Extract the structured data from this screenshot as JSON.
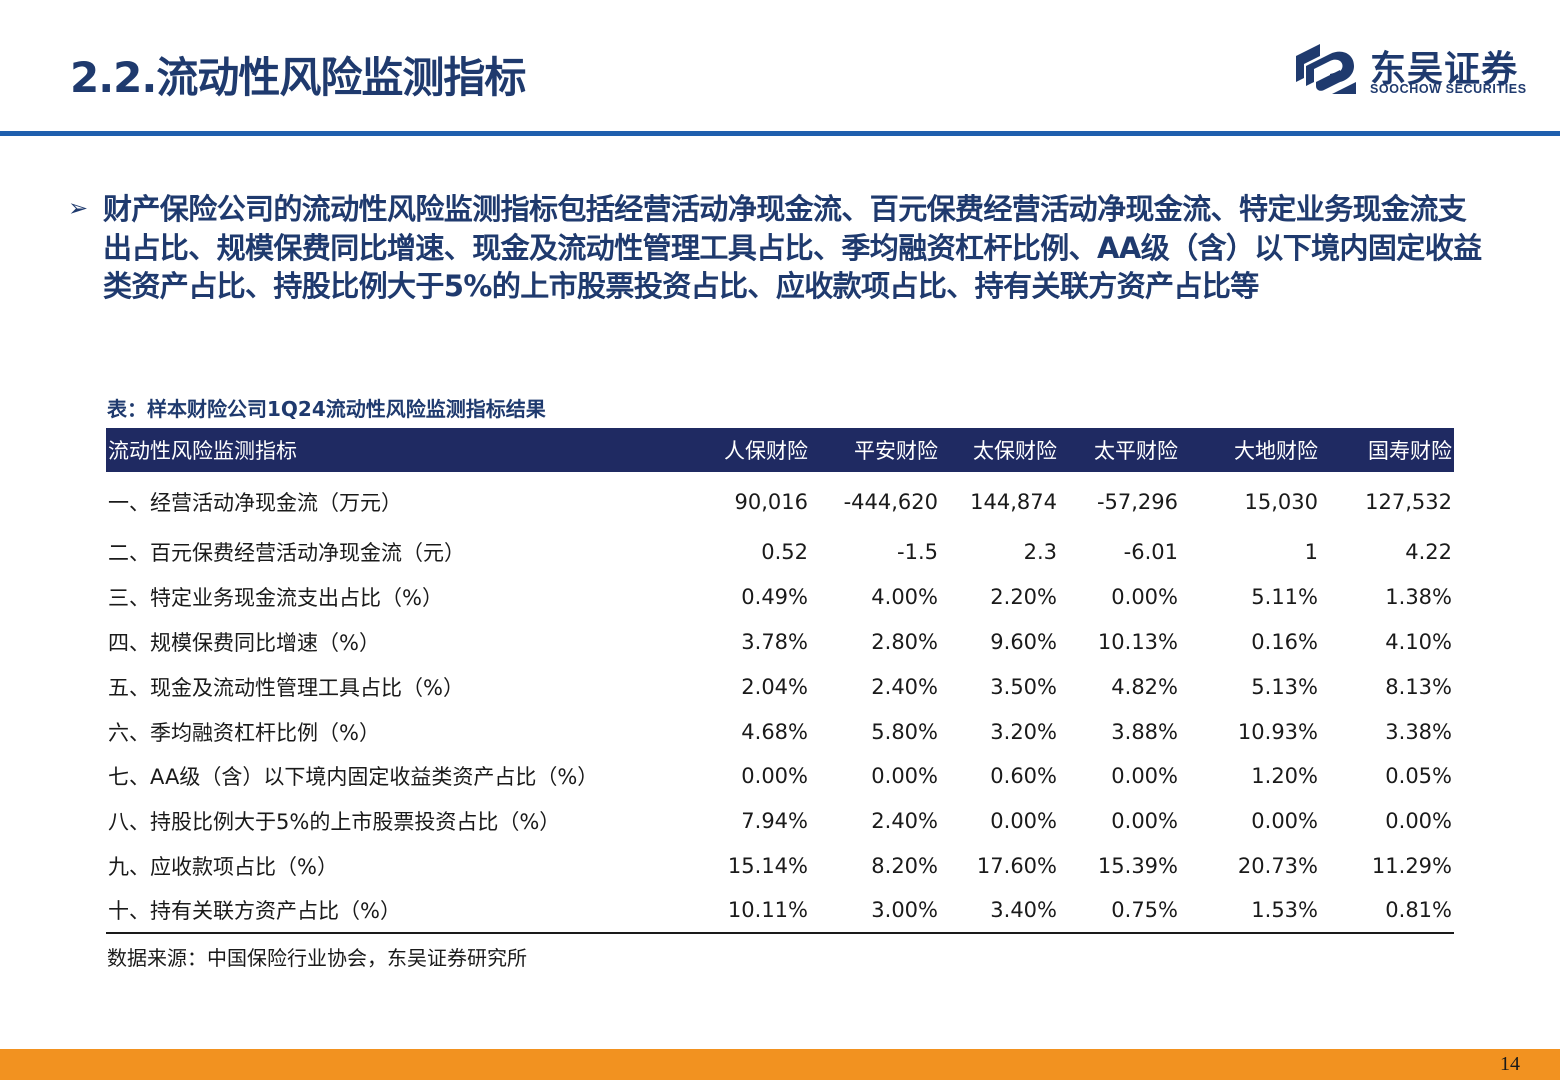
{
  "header": {
    "title": "2.2.流动性风险监测指标"
  },
  "logo": {
    "name_cn": "东吴证券",
    "name_en": "SOOCHOW SECURITIES",
    "brand_color": "#1f3a6e",
    "icon": "soochow-logo-icon"
  },
  "bullet": {
    "icon": "triangle-right-icon",
    "text": "财产保险公司的流动性风险监测指标包括经营活动净现金流、百元保费经营活动净现金流、特定业务现金流支出占比、规模保费同比增速、现金及流动性管理工具占比、季均融资杠杆比例、AA级（含）以下境内固定收益类资产占比、持股比例大于5%的上市股票投资占比、应收款项占比、持有关联方资产占比等"
  },
  "table": {
    "caption": "表：样本财险公司1Q24流动性风险监测指标结果",
    "header_color": "#1f2a62",
    "columns": [
      "流动性风险监测指标",
      "人保财险",
      "平安财险",
      "太保财险",
      "太平财险",
      "大地财险",
      "国寿财险"
    ],
    "rows": [
      {
        "name": "一、经营活动净现金流（万元）",
        "values": [
          "90,016",
          "-444,620",
          "144,874",
          "-57,296",
          "15,030",
          "127,532"
        ]
      },
      {
        "name": "二、百元保费经营活动净现金流（元）",
        "values": [
          "0.52",
          "-1.5",
          "2.3",
          "-6.01",
          "1",
          "4.22"
        ]
      },
      {
        "name": "三、特定业务现金流支出占比（%）",
        "values": [
          "0.49%",
          "4.00%",
          "2.20%",
          "0.00%",
          "5.11%",
          "1.38%"
        ]
      },
      {
        "name": "四、规模保费同比增速（%）",
        "values": [
          "3.78%",
          "2.80%",
          "9.60%",
          "10.13%",
          "0.16%",
          "4.10%"
        ]
      },
      {
        "name": "五、现金及流动性管理工具占比（%）",
        "values": [
          "2.04%",
          "2.40%",
          "3.50%",
          "4.82%",
          "5.13%",
          "8.13%"
        ]
      },
      {
        "name": "六、季均融资杠杆比例（%）",
        "values": [
          "4.68%",
          "5.80%",
          "3.20%",
          "3.88%",
          "10.93%",
          "3.38%"
        ]
      },
      {
        "name": "七、AA级（含）以下境内固定收益类资产占比（%）",
        "values": [
          "0.00%",
          "0.00%",
          "0.60%",
          "0.00%",
          "1.20%",
          "0.05%"
        ]
      },
      {
        "name": "八、持股比例大于5%的上市股票投资占比（%）",
        "values": [
          "7.94%",
          "2.40%",
          "0.00%",
          "0.00%",
          "0.00%",
          "0.00%"
        ]
      },
      {
        "name": "九、应收款项占比（%）",
        "values": [
          "15.14%",
          "8.20%",
          "17.60%",
          "15.39%",
          "20.73%",
          "11.29%"
        ]
      },
      {
        "name": "十、持有关联方资产占比（%）",
        "values": [
          "10.11%",
          "3.00%",
          "3.40%",
          "0.75%",
          "1.53%",
          "0.81%"
        ]
      }
    ]
  },
  "source": "数据来源：中国保险行业协会，东吴证券研究所",
  "footer": {
    "page_number": "14",
    "bar_color": "#f29220"
  }
}
